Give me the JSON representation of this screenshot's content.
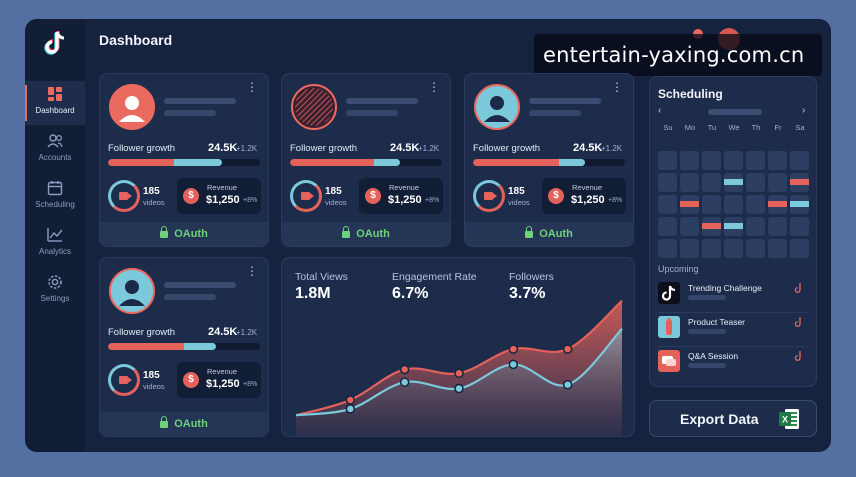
{
  "app": {
    "title": "Dashboard"
  },
  "watermark": "entertain-yaxing.com.cn",
  "sidebar": {
    "items": [
      {
        "label": "Dashboard",
        "icon": "dashboard-icon",
        "active": true
      },
      {
        "label": "Accounts",
        "icon": "users-icon",
        "active": false
      },
      {
        "label": "Scheduling",
        "icon": "calendar-icon",
        "active": false
      },
      {
        "label": "Analytics",
        "icon": "analytics-icon",
        "active": false
      },
      {
        "label": "Settings",
        "icon": "gear-icon",
        "active": false
      }
    ]
  },
  "cards": [
    {
      "avatar": "profile-avatar-coral",
      "follower_label": "Follower growth",
      "follower_value": "24.5K",
      "follower_delta": "+1.2K",
      "growth_progress_percent": 75,
      "videos_count": "185",
      "videos_label": "videos",
      "revenue_label": "Revenue",
      "revenue_value": "$1,250",
      "revenue_delta": "+8%",
      "oauth_label": "OAuth"
    },
    {
      "avatar": "profile-avatar-pattern",
      "follower_label": "Follower growth",
      "follower_value": "24.5K",
      "follower_delta": "+1.2K",
      "growth_progress_percent": 75,
      "videos_count": "185",
      "videos_label": "videos",
      "revenue_label": "Revenue",
      "revenue_value": "$1,250",
      "revenue_delta": "+8%",
      "oauth_label": "OAuth"
    },
    {
      "avatar": "profile-avatar-blue",
      "follower_label": "Follower growth",
      "follower_value": "24.5K",
      "follower_delta": "+1.2K",
      "growth_progress_percent": 75,
      "videos_count": "185",
      "videos_label": "videos",
      "revenue_label": "Revenue",
      "revenue_value": "$1,250",
      "revenue_delta": "+8%",
      "oauth_label": "OAuth"
    },
    {
      "avatar": "profile-avatar-blue",
      "follower_label": "Follower growth",
      "follower_value": "24.5K",
      "follower_delta": "+1.2K",
      "growth_progress_percent": 71,
      "videos_count": "185",
      "videos_label": "videos",
      "revenue_label": "Revenue",
      "revenue_value": "$1,250",
      "revenue_delta": "+8%",
      "oauth_label": "OAuth"
    }
  ],
  "stats": [
    {
      "label": "Total Views",
      "value": "1.8M"
    },
    {
      "label": "Engagement Rate",
      "value": "6.7%"
    },
    {
      "label": "Followers",
      "value": "3.7%"
    }
  ],
  "chart_data": {
    "type": "area",
    "title": "",
    "xlabel": "",
    "ylabel": "",
    "series": [
      {
        "values": [
          10,
          22,
          46,
          43,
          62,
          62,
          100
        ],
        "color": "#e4625a"
      },
      {
        "values": [
          10,
          15,
          36,
          31,
          50,
          34,
          78
        ],
        "color": "#7cc9dc"
      }
    ],
    "ylim": [
      0,
      110
    ],
    "grid": false
  },
  "scheduling": {
    "title": "Scheduling",
    "days": [
      "Su",
      "Mo",
      "Tu",
      "We",
      "Th",
      "Fr",
      "Sa"
    ],
    "events": [
      {
        "week": 2,
        "day": 3,
        "color": "#7cc9dc"
      },
      {
        "week": 2,
        "day": 6,
        "color": "#e4625a"
      },
      {
        "week": 3,
        "day": 1,
        "color": "#e4625a"
      },
      {
        "week": 3,
        "day": 5,
        "color": "#e4625a"
      },
      {
        "week": 3,
        "day": 6,
        "color": "#7cc9dc"
      },
      {
        "week": 4,
        "day": 2,
        "color": "#e4625a"
      },
      {
        "week": 4,
        "day": 3,
        "color": "#7cc9dc"
      }
    ],
    "upcoming_label": "Upcoming",
    "upcoming": [
      {
        "title": "Trending Challenge",
        "thumb": "tiktok-logo-thumb"
      },
      {
        "title": "Product Teaser",
        "thumb": "product-thumb"
      },
      {
        "title": "Q&A Session",
        "thumb": "chat-thumb"
      }
    ]
  },
  "export": {
    "label": "Export Data",
    "icon": "excel-icon"
  },
  "colors": {
    "accent_red": "#e4625a",
    "accent_blue": "#7cc9dc",
    "oauth_green": "#6fd17a",
    "background": "#16233f"
  }
}
